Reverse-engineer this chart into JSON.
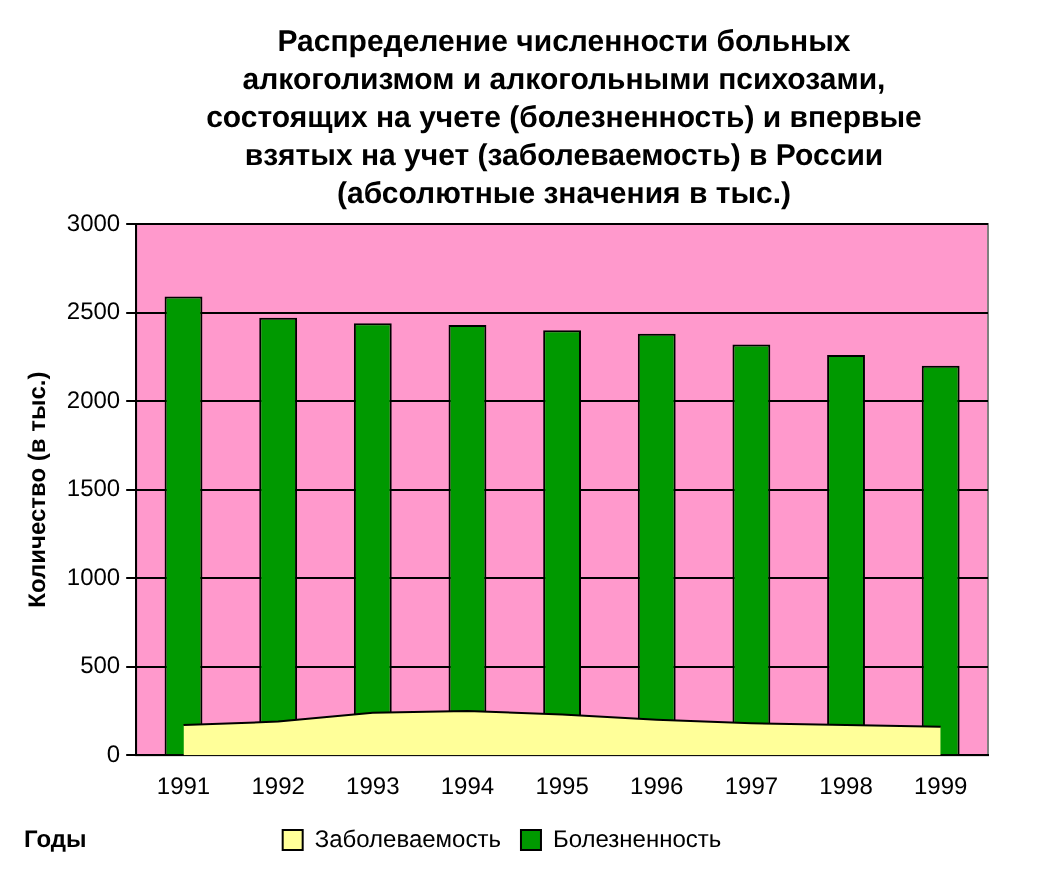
{
  "chart_data": {
    "type": "bar",
    "title": "Распределение численности больных алкоголизмом и алкогольными психозами, состоящих на учете (болезненность) и впервые взятых на учет (заболеваемость) в России (абсолютные значения в тыс.)",
    "xlabel": "Годы",
    "ylabel": "Количество (в тыс.)",
    "categories": [
      "1991",
      "1992",
      "1993",
      "1994",
      "1995",
      "1996",
      "1997",
      "1998",
      "1999"
    ],
    "series": [
      {
        "name": "Заболеваемость",
        "type": "area",
        "color": "#ffff99",
        "values": [
          170,
          190,
          240,
          250,
          230,
          200,
          180,
          170,
          160
        ]
      },
      {
        "name": "Болезненность",
        "type": "bar",
        "color": "#009900",
        "values": [
          2590,
          2470,
          2440,
          2430,
          2400,
          2380,
          2320,
          2260,
          2200
        ]
      }
    ],
    "ylim": [
      0,
      3000
    ],
    "yticks": [
      0,
      500,
      1000,
      1500,
      2000,
      2500,
      3000
    ],
    "grid": "y",
    "legend": "bottom"
  }
}
